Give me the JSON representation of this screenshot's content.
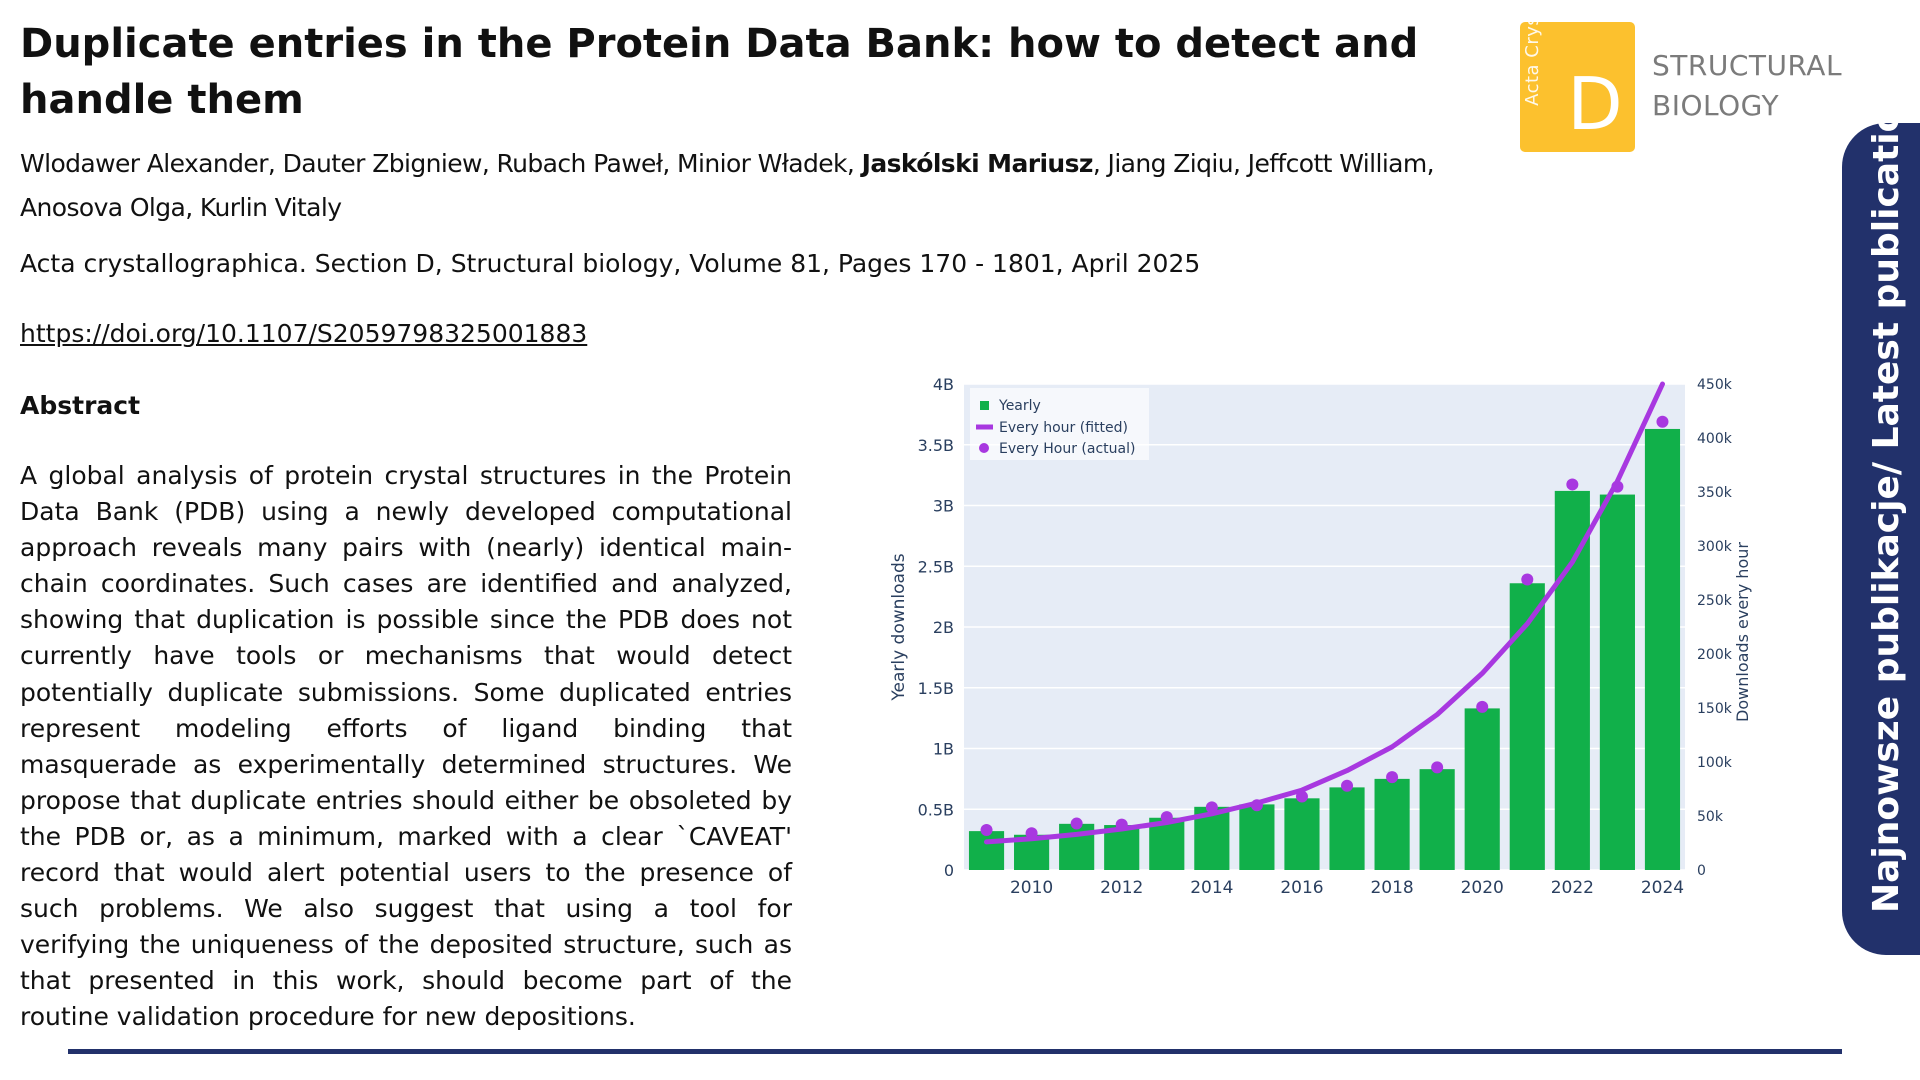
{
  "title": "Duplicate entries in the Protein Data Bank: how to detect and handle them",
  "authors": {
    "before": "Wlodawer Alexander, Dauter Zbigniew, Rubach Paweł, Minior Władek, ",
    "highlight": "Jaskólski Mariusz",
    "after": ", Jiang Ziqiu, Jeffcott William, Anosova Olga, Kurlin Vitaly"
  },
  "journal": "Acta crystallographica. Section D, Structural biology, Volume 81, Pages 170 - 1801, April 2025",
  "doi": "https://doi.org/10.1107/S2059798325001883",
  "abstract": {
    "heading": "Abstract",
    "text": "A global analysis of protein crystal structures in the Protein Data Bank (PDB) using a newly developed computational approach reveals many pairs with (nearly) identical main-chain coordinates. Such cases are identified and analyzed, showing that duplication is possible since the PDB does not currently have tools or mechanisms that would detect potentially duplicate submissions. Some duplicated entries represent modeling efforts of ligand binding that masquerade as experimentally determined structures. We propose that duplicate entries should either be obsoleted by the PDB or, as a minimum, marked with a clear `CAVEAT' record that would alert potential users to the presence of such problems. We also suggest that using a tool for verifying the uniqueness of the deposited structure, such as that presented in this work, should become part of the routine validation procedure for new depositions."
  },
  "logo": {
    "vertical_text": "Acta Cryst",
    "letter": "D",
    "line1": "STRUCTURAL",
    "line2": "BIOLOGY",
    "color": "#fcc12e"
  },
  "side_tab": {
    "label": "Najnowsze publikacje/ Latest publications",
    "color": "#22316b"
  },
  "chart_data": {
    "type": "bar",
    "x": [
      2009,
      2010,
      2011,
      2012,
      2013,
      2014,
      2015,
      2016,
      2017,
      2018,
      2019,
      2020,
      2021,
      2022,
      2023,
      2024
    ],
    "x_tick_labels": [
      "2010",
      "2012",
      "2014",
      "2016",
      "2018",
      "2020",
      "2022",
      "2024"
    ],
    "x_tick_values": [
      2010,
      2012,
      2014,
      2016,
      2018,
      2020,
      2022,
      2024
    ],
    "ylabel": "Yearly downloads",
    "y2label": "Downloads every hour",
    "ylim": [
      0,
      4000000000
    ],
    "y_tick_values": [
      0,
      500000000,
      1000000000,
      1500000000,
      2000000000,
      2500000000,
      3000000000,
      3500000000,
      4000000000
    ],
    "y_tick_labels": [
      "0",
      "0.5B",
      "1B",
      "1.5B",
      "2B",
      "2.5B",
      "3B",
      "3.5B",
      "4B"
    ],
    "y2lim": [
      0,
      450000
    ],
    "y2_tick_values": [
      0,
      50000,
      100000,
      150000,
      200000,
      250000,
      300000,
      350000,
      400000,
      450000
    ],
    "y2_tick_labels": [
      "0",
      "50k",
      "100k",
      "150k",
      "200k",
      "250k",
      "300k",
      "350k",
      "400k",
      "450k"
    ],
    "series": [
      {
        "name": "Yearly",
        "kind": "bar",
        "axis": "left",
        "color": "#11b04a",
        "values": [
          320000000,
          290000000,
          380000000,
          370000000,
          430000000,
          520000000,
          540000000,
          590000000,
          680000000,
          750000000,
          830000000,
          1330000000,
          2360000000,
          3120000000,
          3090000000,
          3630000000
        ]
      },
      {
        "name": "Every hour (fitted)",
        "kind": "line",
        "axis": "right",
        "color": "#a838e0",
        "x": [
          2009,
          2010,
          2011,
          2012,
          2013,
          2014,
          2015,
          2016,
          2017,
          2018,
          2019,
          2020,
          2021,
          2022,
          2023,
          2024
        ],
        "values": [
          26000,
          29000,
          33000,
          38000,
          44000,
          52000,
          62000,
          74000,
          92000,
          114000,
          144000,
          182000,
          228000,
          285000,
          360000,
          450000
        ]
      },
      {
        "name": "Every Hour (actual)",
        "kind": "scatter",
        "axis": "right",
        "color": "#a838e0",
        "values": [
          37000,
          34000,
          43000,
          42000,
          49000,
          58000,
          60000,
          68000,
          78000,
          86000,
          95000,
          151000,
          269000,
          357000,
          355000,
          415000
        ]
      }
    ],
    "legend": "top-left",
    "grid": true,
    "background": "#e6ecf6"
  }
}
